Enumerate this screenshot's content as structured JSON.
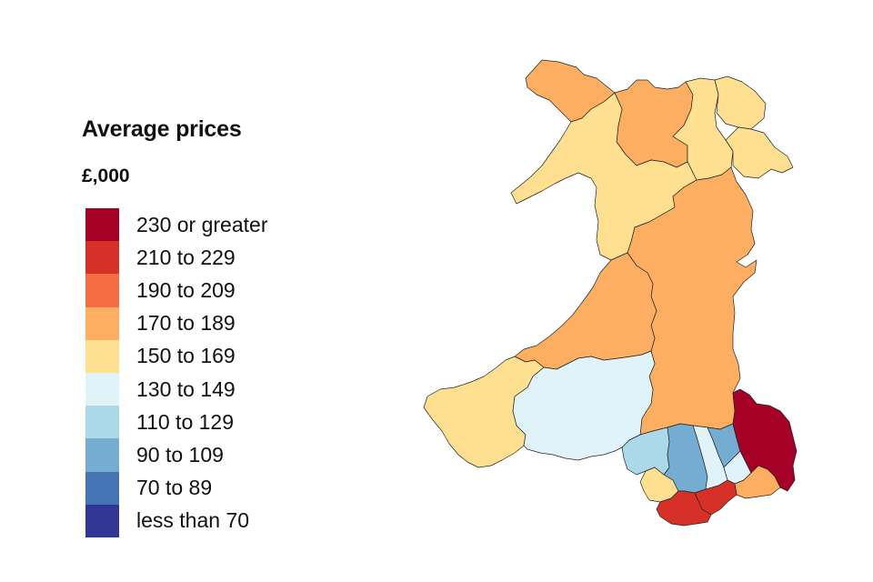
{
  "legend": {
    "title": "Average prices",
    "subtitle": "£,000",
    "items": [
      {
        "label": "230 or greater",
        "color": "#a50026"
      },
      {
        "label": "210 to 229",
        "color": "#d73027"
      },
      {
        "label": "190 to 209",
        "color": "#f46d43"
      },
      {
        "label": "170 to 189",
        "color": "#fdae61"
      },
      {
        "label": "150 to 169",
        "color": "#fee090"
      },
      {
        "label": "130 to 149",
        "color": "#e0f3f8"
      },
      {
        "label": "110 to 129",
        "color": "#abd9e9"
      },
      {
        "label": "90 to 109",
        "color": "#74add1"
      },
      {
        "label": "70 to 89",
        "color": "#4575b4"
      },
      {
        "label": "less than 70",
        "color": "#313695"
      }
    ]
  },
  "map": {
    "regions": [
      {
        "band": "170 to 189"
      },
      {
        "band": "170 to 189"
      },
      {
        "band": "150 to 169"
      },
      {
        "band": "150 to 169"
      },
      {
        "band": "150 to 169"
      },
      {
        "band": "150 to 169"
      },
      {
        "band": "150 to 169"
      },
      {
        "band": "170 to 189"
      },
      {
        "band": "170 to 189"
      },
      {
        "band": "150 to 169"
      },
      {
        "band": "130 to 149"
      },
      {
        "band": "110 to 129"
      },
      {
        "band": "150 to 169"
      },
      {
        "band": "90 to 109"
      },
      {
        "band": "130 to 149"
      },
      {
        "band": "90 to 109"
      },
      {
        "band": "130 to 149"
      },
      {
        "band": "230 or greater"
      },
      {
        "band": "170 to 189"
      },
      {
        "band": "210 to 229"
      },
      {
        "band": "210 to 229"
      }
    ]
  }
}
